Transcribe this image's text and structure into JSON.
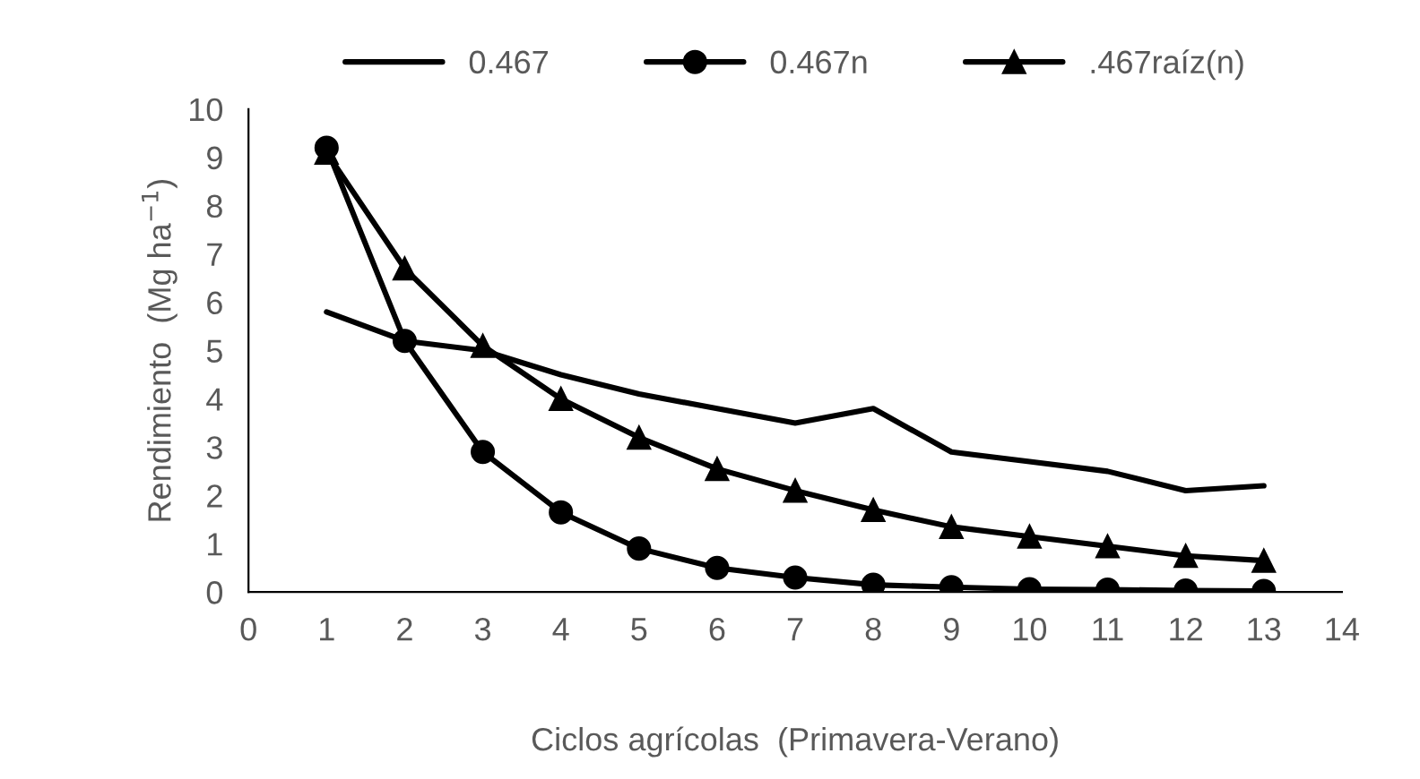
{
  "chart_data": {
    "type": "line",
    "xlabel": "Ciclos agrícolas  (Primavera-Verano)",
    "ylabel": "Rendimiento  (Mg ha$^{−1}$)",
    "x": [
      1,
      2,
      3,
      4,
      5,
      6,
      7,
      8,
      9,
      10,
      11,
      12,
      13
    ],
    "series": [
      {
        "name": "0.467",
        "color": "#000000",
        "marker": "none",
        "values": [
          5.8,
          5.2,
          5.0,
          4.5,
          4.1,
          3.8,
          3.5,
          3.8,
          2.9,
          2.7,
          2.5,
          2.1,
          2.2
        ]
      },
      {
        "name": "0.467n",
        "color": "#000000",
        "marker": "circle",
        "values": [
          9.2,
          5.2,
          2.9,
          1.65,
          0.9,
          0.5,
          0.3,
          0.15,
          0.1,
          0.06,
          0.05,
          0.03,
          0.02
        ]
      },
      {
        "name": ".467raíz(n)",
        "color": "#000000",
        "marker": "triangle",
        "values": [
          9.1,
          6.7,
          5.1,
          4.0,
          3.2,
          2.55,
          2.1,
          1.7,
          1.35,
          1.15,
          0.95,
          0.75,
          0.65
        ]
      }
    ],
    "xlim": [
      0,
      14
    ],
    "xticks": [
      0,
      1,
      2,
      3,
      4,
      5,
      6,
      7,
      8,
      9,
      10,
      11,
      12,
      13,
      14
    ],
    "ylim": [
      0,
      10
    ],
    "yticks": [
      0,
      1,
      2,
      3,
      4,
      5,
      6,
      7,
      8,
      9,
      10
    ],
    "grid": false,
    "legend": "top",
    "line_style": "solid"
  }
}
